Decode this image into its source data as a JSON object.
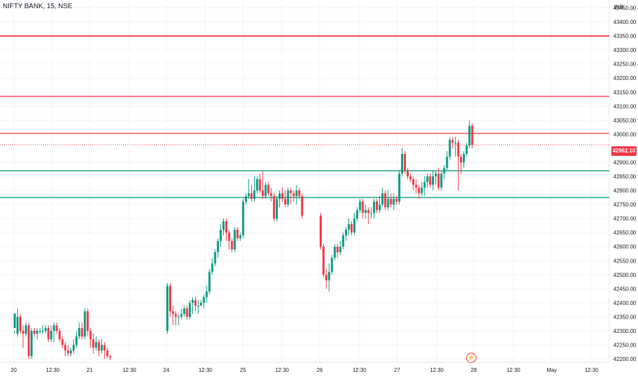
{
  "header": {
    "symbol": "NIFTY BANK, 15, NSE",
    "currency": "INR"
  },
  "last_price_label": "42962.10",
  "colors": {
    "up": "#089981",
    "down": "#f23645",
    "resistance": "#f23645",
    "support": "#089981",
    "grid": "#f0f3fa",
    "axis_text": "#131722"
  },
  "event_marker": {
    "icon": "flash-icon",
    "glyph": "⚡"
  },
  "chart_data": {
    "type": "candlestick",
    "title": "NIFTY BANK, 15, NSE",
    "y_axis": {
      "ticks": [
        "43450.00",
        "43400.00",
        "43350.00",
        "43300.00",
        "43250.00",
        "43200.00",
        "43150.00",
        "43100.00",
        "43050.00",
        "43000.00",
        "42950.00",
        "42900.00",
        "42850.00",
        "42800.00",
        "42750.00",
        "42700.00",
        "42650.00",
        "42600.00",
        "42550.00",
        "42500.00",
        "42450.00",
        "42400.00",
        "42350.00",
        "42300.00",
        "42250.00",
        "42200.00"
      ],
      "range": [
        42188,
        43478
      ]
    },
    "x_axis": {
      "labels": [
        "20",
        "12:30",
        "21",
        "12:30",
        "24",
        "12:30",
        "25",
        "12:30",
        "26",
        "12:30",
        "27",
        "12:30",
        "28",
        "12:30",
        "May",
        "12:30"
      ]
    },
    "horizontal_lines": [
      {
        "price": 43350,
        "color": "#f23645",
        "kind": "resistance"
      },
      {
        "price": 43135,
        "color": "#f23645",
        "kind": "resistance"
      },
      {
        "price": 43003,
        "color": "#f23645",
        "kind": "resistance"
      },
      {
        "price": 42962.1,
        "color": "#f23645",
        "kind": "last-price"
      },
      {
        "price": 42870,
        "color": "#089981",
        "kind": "support"
      },
      {
        "price": 42775,
        "color": "#089981",
        "kind": "support"
      }
    ],
    "sessions": [
      {
        "day": "20",
        "candles": [
          [
            42310,
            42362,
            42300,
            42290
          ],
          [
            42290,
            42350,
            42380,
            42280
          ],
          [
            42350,
            42300,
            42360,
            42290
          ],
          [
            42300,
            42290,
            42320,
            42240
          ],
          [
            42290,
            42320,
            42330,
            42280
          ],
          [
            42320,
            42210,
            42330,
            42200
          ],
          [
            42210,
            42300,
            42310,
            42200
          ],
          [
            42300,
            42290,
            42310,
            42280
          ],
          [
            42290,
            42300,
            42310,
            42270
          ],
          [
            42300,
            42300,
            42310,
            42290
          ],
          [
            42300,
            42300,
            42320,
            42290
          ],
          [
            42300,
            42310,
            42320,
            42290
          ],
          [
            42310,
            42270,
            42320,
            42260
          ],
          [
            42270,
            42300,
            42320,
            42260
          ],
          [
            42300,
            42320,
            42330,
            42260
          ],
          [
            42320,
            42300,
            42330,
            42290
          ],
          [
            42300,
            42270,
            42310,
            42260
          ],
          [
            42270,
            42250,
            42280,
            42240
          ],
          [
            42250,
            42230,
            42260,
            42210
          ],
          [
            42230,
            42220,
            42250,
            42210
          ],
          [
            42220,
            42230,
            42240,
            42210
          ],
          [
            42230,
            42250,
            42270,
            42220
          ],
          [
            42250,
            42280,
            42300,
            42240
          ],
          [
            42280,
            42310,
            42330,
            42270
          ],
          [
            42310,
            42280,
            42330,
            42270
          ],
          [
            42280,
            42370,
            42380,
            42270
          ],
          [
            42370,
            42300,
            42380,
            42280
          ],
          [
            42300,
            42270,
            42310,
            42240
          ],
          [
            42270,
            42240,
            42290,
            42220
          ],
          [
            42240,
            42260,
            42280,
            42230
          ],
          [
            42260,
            42230,
            42270,
            42210
          ],
          [
            42230,
            42250,
            42270,
            42220
          ],
          [
            42250,
            42230,
            42260,
            42200
          ],
          [
            42230,
            42210,
            42240,
            42200
          ],
          [
            42210,
            42205,
            42215,
            42195
          ]
        ]
      },
      {
        "day": "24",
        "candles": [
          [
            42300,
            42460,
            42470,
            42290
          ],
          [
            42460,
            42370,
            42470,
            42350
          ],
          [
            42370,
            42360,
            42390,
            42320
          ],
          [
            42360,
            42350,
            42370,
            42320
          ],
          [
            42350,
            42350,
            42360,
            42320
          ],
          [
            42350,
            42360,
            42380,
            42340
          ],
          [
            42360,
            42380,
            42390,
            42350
          ],
          [
            42380,
            42350,
            42390,
            42340
          ],
          [
            42350,
            42400,
            42410,
            42340
          ],
          [
            42400,
            42410,
            42420,
            42360
          ],
          [
            42410,
            42390,
            42420,
            42370
          ],
          [
            42390,
            42390,
            42410,
            42360
          ],
          [
            42390,
            42400,
            42410,
            42390
          ],
          [
            42400,
            42420,
            42430,
            42380
          ],
          [
            42420,
            42440,
            42460,
            42400
          ],
          [
            42440,
            42510,
            42520,
            42430
          ],
          [
            42510,
            42540,
            42560,
            42500
          ],
          [
            42540,
            42580,
            42590,
            42530
          ],
          [
            42580,
            42620,
            42630,
            42560
          ],
          [
            42620,
            42660,
            42680,
            42600
          ],
          [
            42660,
            42690,
            42700,
            42640
          ],
          [
            42690,
            42650,
            42700,
            42620
          ],
          [
            42650,
            42620,
            42660,
            42590
          ],
          [
            42620,
            42590,
            42630,
            42580
          ],
          [
            42590,
            42660,
            42670,
            42580
          ],
          [
            42660,
            42630,
            42670,
            42620
          ],
          [
            42630,
            42640,
            42650,
            42620
          ],
          [
            42640,
            42760,
            42770,
            42630
          ],
          [
            42760,
            42780,
            42790,
            42750
          ],
          [
            42780,
            42790,
            42840,
            42770
          ],
          [
            42790,
            42770,
            42820,
            42760
          ],
          [
            42770,
            42800,
            42850,
            42760
          ],
          [
            42800,
            42840,
            42850,
            42790
          ],
          [
            42840,
            42800,
            42860,
            42790
          ],
          [
            42800,
            42780,
            42870,
            42770
          ],
          [
            42780,
            42820,
            42830,
            42770
          ],
          [
            42820,
            42790,
            42830,
            42780
          ],
          [
            42790,
            42780,
            42810,
            42760
          ],
          [
            42780,
            42700,
            42790,
            42690
          ],
          [
            42700,
            42770,
            42780,
            42690
          ],
          [
            42770,
            42790,
            42800,
            42740
          ],
          [
            42790,
            42770,
            42810,
            42760
          ],
          [
            42770,
            42750,
            42800,
            42740
          ],
          [
            42750,
            42800,
            42810,
            42740
          ],
          [
            42800,
            42790,
            42810,
            42750
          ],
          [
            42790,
            42780,
            42800,
            42760
          ],
          [
            42780,
            42800,
            42820,
            42750
          ],
          [
            42800,
            42780,
            42810,
            42770
          ],
          [
            42780,
            42710,
            42790,
            42700
          ]
        ]
      },
      {
        "day": "26",
        "candles": [
          [
            42710,
            42600,
            42720,
            42590
          ],
          [
            42600,
            42500,
            42610,
            42490
          ],
          [
            42500,
            42480,
            42520,
            42450
          ],
          [
            42480,
            42510,
            42540,
            42440
          ],
          [
            42510,
            42560,
            42570,
            42500
          ],
          [
            42560,
            42600,
            42610,
            42550
          ],
          [
            42600,
            42580,
            42610,
            42560
          ],
          [
            42580,
            42600,
            42620,
            42570
          ],
          [
            42600,
            42640,
            42650,
            42590
          ],
          [
            42640,
            42660,
            42670,
            42620
          ],
          [
            42660,
            42680,
            42700,
            42640
          ],
          [
            42680,
            42650,
            42690,
            42640
          ],
          [
            42650,
            42700,
            42720,
            42640
          ],
          [
            42700,
            42730,
            42740,
            42690
          ],
          [
            42730,
            42760,
            42770,
            42720
          ],
          [
            42760,
            42720,
            42770,
            42700
          ],
          [
            42720,
            42730,
            42750,
            42700
          ],
          [
            42730,
            42720,
            42740,
            42680
          ],
          [
            42720,
            42720,
            42740,
            42700
          ],
          [
            42720,
            42760,
            42770,
            42700
          ],
          [
            42760,
            42730,
            42770,
            42720
          ],
          [
            42730,
            42750,
            42780,
            42720
          ],
          [
            42750,
            42790,
            42810,
            42740
          ],
          [
            42790,
            42740,
            42800,
            42730
          ],
          [
            42740,
            42770,
            42800,
            42730
          ],
          [
            42770,
            42750,
            42790,
            42740
          ],
          [
            42750,
            42770,
            42790,
            42730
          ],
          [
            42770,
            42760,
            42780,
            42750
          ],
          [
            42760,
            42860,
            42870,
            42750
          ],
          [
            42860,
            42930,
            42950,
            42850
          ],
          [
            42930,
            42870,
            42940,
            42860
          ],
          [
            42870,
            42850,
            42880,
            42840
          ],
          [
            42850,
            42840,
            42860,
            42830
          ],
          [
            42840,
            42820,
            42850,
            42800
          ],
          [
            42820,
            42810,
            42840,
            42790
          ],
          [
            42810,
            42790,
            42820,
            42770
          ],
          [
            42790,
            42810,
            42830,
            42780
          ],
          [
            42810,
            42830,
            42850,
            42780
          ],
          [
            42830,
            42850,
            42860,
            42810
          ],
          [
            42850,
            42820,
            42860,
            42810
          ],
          [
            42820,
            42850,
            42870,
            42800
          ],
          [
            42850,
            42860,
            42870,
            42820
          ],
          [
            42860,
            42810,
            42880,
            42800
          ],
          [
            42810,
            42860,
            42870,
            42800
          ],
          [
            42860,
            42880,
            42890,
            42840
          ],
          [
            42880,
            42920,
            42940,
            42870
          ],
          [
            42920,
            42980,
            42990,
            42910
          ],
          [
            42980,
            42970,
            42990,
            42950
          ],
          [
            42970,
            42970,
            42990,
            42920
          ],
          [
            42970,
            42920,
            42980,
            42800
          ],
          [
            42920,
            42900,
            42930,
            42860
          ],
          [
            42900,
            42930,
            42940,
            42880
          ],
          [
            42930,
            42960,
            42970,
            42920
          ],
          [
            42960,
            43030,
            43050,
            42950
          ],
          [
            43030,
            42962.1,
            43040,
            42950
          ]
        ]
      }
    ]
  }
}
